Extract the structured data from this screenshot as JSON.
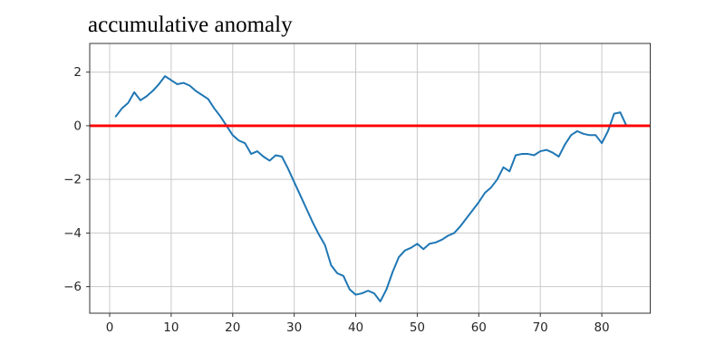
{
  "chart_data": {
    "type": "line",
    "title": "accumulative anomaly",
    "xlabel": "",
    "ylabel": "",
    "grid": true,
    "legend": false,
    "xlim": [
      -3.24,
      87.87
    ],
    "ylim": [
      -6.99,
      3.07
    ],
    "xticks": [
      0,
      10,
      20,
      30,
      40,
      50,
      60,
      70,
      80
    ],
    "yticks": [
      2,
      0,
      -2,
      -4,
      -6
    ],
    "zero_line": {
      "y": 0,
      "color": "#ff0000",
      "width": 2.8
    },
    "series": [
      {
        "name": "accumulative anomaly",
        "color": "#1f77b4",
        "width": 2,
        "x": [
          1,
          2,
          3,
          4,
          5,
          6,
          7,
          8,
          9,
          10,
          11,
          12,
          13,
          14,
          15,
          16,
          17,
          18,
          19,
          20,
          21,
          22,
          23,
          24,
          25,
          26,
          27,
          28,
          29,
          30,
          31,
          32,
          33,
          34,
          35,
          36,
          37,
          38,
          39,
          40,
          41,
          42,
          43,
          44,
          45,
          46,
          47,
          48,
          49,
          50,
          51,
          52,
          53,
          54,
          55,
          56,
          57,
          58,
          59,
          60,
          61,
          62,
          63,
          64,
          65,
          66,
          67,
          68,
          69,
          70,
          71,
          72,
          73,
          74,
          75,
          76,
          77,
          78,
          79,
          80,
          81,
          82,
          83,
          84
        ],
        "y": [
          0.35,
          0.65,
          0.85,
          1.25,
          0.95,
          1.1,
          1.3,
          1.55,
          1.85,
          1.7,
          1.55,
          1.6,
          1.5,
          1.3,
          1.15,
          1.0,
          0.65,
          0.35,
          0.0,
          -0.35,
          -0.55,
          -0.65,
          -1.05,
          -0.95,
          -1.15,
          -1.3,
          -1.1,
          -1.15,
          -1.6,
          -2.1,
          -2.6,
          -3.1,
          -3.6,
          -4.05,
          -4.45,
          -5.2,
          -5.5,
          -5.6,
          -6.1,
          -6.3,
          -6.25,
          -6.15,
          -6.25,
          -6.55,
          -6.1,
          -5.45,
          -4.9,
          -4.65,
          -4.55,
          -4.4,
          -4.6,
          -4.4,
          -4.35,
          -4.25,
          -4.1,
          -4.0,
          -3.75,
          -3.45,
          -3.15,
          -2.85,
          -2.5,
          -2.3,
          -2.0,
          -1.55,
          -1.7,
          -1.1,
          -1.05,
          -1.05,
          -1.1,
          -0.95,
          -0.9,
          -1.0,
          -1.15,
          -0.7,
          -0.35,
          -0.2,
          -0.3,
          -0.35,
          -0.35,
          -0.65,
          -0.2,
          0.45,
          0.5,
          0.0
        ]
      }
    ],
    "colors": {
      "background": "#ffffff",
      "grid": "#c9c9c9",
      "spine": "#333333",
      "tick": "#333333",
      "tick_label": "#262626",
      "series_blue": "#1f77b4",
      "zero_line_red": "#ff0000"
    }
  }
}
